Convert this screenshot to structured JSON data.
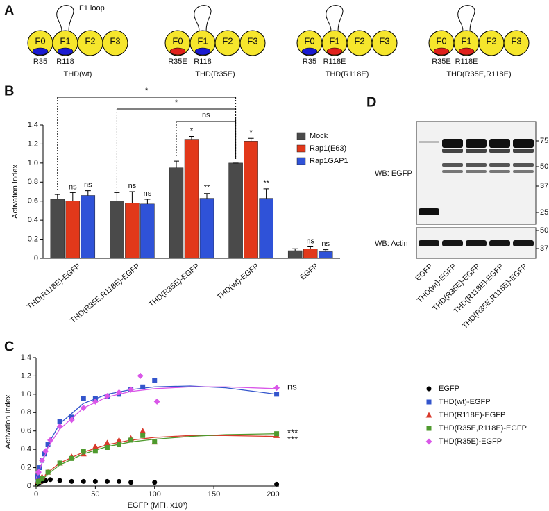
{
  "panels": {
    "a": "A",
    "b": "B",
    "c": "C",
    "d": "D"
  },
  "diagram": {
    "loop_label": "F1 loop",
    "domains": [
      "F0",
      "F1",
      "F2",
      "F3"
    ],
    "domain_color": "#f6e62c",
    "constructs": [
      {
        "name": "THD(wt)",
        "residues": [
          {
            "label": "R35",
            "color": "#1a1ad0"
          },
          {
            "label": "R118",
            "color": "#1a1ad0"
          }
        ]
      },
      {
        "name": "THD(R35E)",
        "residues": [
          {
            "label": "R35E",
            "color": "#e0201a"
          },
          {
            "label": "R118",
            "color": "#1a1ad0"
          }
        ]
      },
      {
        "name": "THD(R118E)",
        "residues": [
          {
            "label": "R35",
            "color": "#1a1ad0"
          },
          {
            "label": "R118E",
            "color": "#e0201a"
          }
        ]
      },
      {
        "name": "THD(R35E,R118E)",
        "residues": [
          {
            "label": "R35E",
            "color": "#e0201a"
          },
          {
            "label": "R118E",
            "color": "#e0201a"
          }
        ]
      }
    ]
  },
  "chart_data": [
    {
      "type": "bar",
      "y_label": "Activation Index",
      "categories": [
        "THD(R118E)-EGFP",
        "THD(R35E,R118E)-EGFP",
        "THD(R35E)-EGFP",
        "THD(wt)-EGFP",
        "EGFP"
      ],
      "series": [
        {
          "name": "Mock",
          "color": "#4a4a4a",
          "values": [
            0.62,
            0.6,
            0.95,
            1.0,
            0.08
          ],
          "errors": [
            0.05,
            0.09,
            0.07,
            0,
            0.02
          ],
          "annotations": [
            null,
            null,
            null,
            null,
            null
          ]
        },
        {
          "name": "Rap1(E63)",
          "color": "#e2381a",
          "values": [
            0.6,
            0.58,
            1.25,
            1.23,
            0.1
          ],
          "errors": [
            0.09,
            0.12,
            0.03,
            0.03,
            0.02
          ],
          "annotations": [
            "ns",
            "ns",
            "*",
            "*",
            "ns"
          ]
        },
        {
          "name": "Rap1GAP1",
          "color": "#2f52d8",
          "values": [
            0.66,
            0.57,
            0.63,
            0.63,
            0.07
          ],
          "errors": [
            0.05,
            0.05,
            0.05,
            0.1,
            0.02
          ],
          "annotations": [
            "ns",
            "ns",
            "**",
            "**",
            "ns"
          ]
        }
      ],
      "ylim": [
        0,
        1.4
      ],
      "yticks": [
        0,
        0.2,
        0.4,
        0.6,
        0.8,
        {
          "value": 1,
          "label": "1.0"
        },
        1.2,
        1.4
      ],
      "brackets": [
        {
          "label": "*"
        },
        {
          "label": "*"
        },
        {
          "label": "ns"
        }
      ],
      "legend": "upper right"
    },
    {
      "type": "scatter",
      "x_label": "EGFP (MFI, x10³)",
      "y_label": "Activation Index",
      "xlim": [
        0,
        205
      ],
      "xticks": [
        0,
        50,
        100,
        150,
        200
      ],
      "ylim": [
        0,
        1.4
      ],
      "yticks": [
        0,
        0.2,
        0.4,
        0.6,
        0.8,
        {
          "value": 1,
          "label": "1.0"
        },
        1.2,
        1.4
      ],
      "fit_x": [
        0,
        10,
        20,
        40,
        60,
        80,
        100,
        130,
        160,
        203
      ],
      "series": [
        {
          "name": "EGFP",
          "color": "#000000",
          "marker": "circle",
          "x": [
            1,
            3,
            5,
            8,
            12,
            20,
            30,
            40,
            50,
            60,
            70,
            80,
            100,
            203
          ],
          "values": [
            0.02,
            0.04,
            0.05,
            0.06,
            0.07,
            0.06,
            0.05,
            0.05,
            0.05,
            0.05,
            0.05,
            0.04,
            0.04,
            0.02
          ]
        },
        {
          "name": "THD(wt)-EGFP",
          "color": "#3355cc",
          "marker": "square",
          "x": [
            1,
            3,
            5,
            7,
            10,
            20,
            30,
            40,
            50,
            60,
            70,
            80,
            90,
            100,
            203
          ],
          "values": [
            0.1,
            0.2,
            0.28,
            0.35,
            0.45,
            0.7,
            0.75,
            0.95,
            0.95,
            0.98,
            1.0,
            1.05,
            1.08,
            1.15,
            1.0
          ],
          "fit": [
            0.05,
            0.45,
            0.68,
            0.9,
            1.0,
            1.05,
            1.08,
            1.09,
            1.07,
            1.0
          ]
        },
        {
          "name": "THD(R118E)-EGFP",
          "color": "#d8392b",
          "marker": "triangle",
          "x": [
            2,
            5,
            10,
            20,
            30,
            40,
            50,
            60,
            70,
            80,
            90,
            100,
            203
          ],
          "values": [
            0.05,
            0.1,
            0.15,
            0.25,
            0.32,
            0.35,
            0.43,
            0.47,
            0.5,
            0.52,
            0.6,
            0.48,
            0.55
          ],
          "fit": [
            0,
            0.15,
            0.25,
            0.37,
            0.45,
            0.5,
            0.53,
            0.55,
            0.55,
            0.54
          ]
        },
        {
          "name": "THD(R35E,R118E)-EGFP",
          "color": "#4f9a2e",
          "marker": "square",
          "x": [
            2,
            5,
            10,
            20,
            30,
            40,
            50,
            60,
            70,
            80,
            90,
            100,
            203
          ],
          "values": [
            0.05,
            0.08,
            0.15,
            0.25,
            0.3,
            0.38,
            0.38,
            0.42,
            0.45,
            0.5,
            0.55,
            0.48,
            0.57
          ],
          "fit": [
            0,
            0.13,
            0.23,
            0.35,
            0.43,
            0.48,
            0.51,
            0.54,
            0.56,
            0.57
          ]
        },
        {
          "name": "THD(R35E)-EGFP",
          "color": "#d957e8",
          "marker": "diamond",
          "x": [
            2,
            5,
            8,
            12,
            20,
            30,
            40,
            50,
            60,
            70,
            80,
            88,
            102,
            203
          ],
          "values": [
            0.15,
            0.28,
            0.38,
            0.5,
            0.65,
            0.72,
            0.85,
            0.92,
            0.98,
            1.02,
            1.05,
            1.2,
            0.92,
            1.07
          ],
          "fit": [
            0.08,
            0.42,
            0.62,
            0.85,
            0.97,
            1.03,
            1.06,
            1.08,
            1.08,
            1.06
          ]
        }
      ],
      "annotations": [
        {
          "label": "ns",
          "color": "#d957e8"
        },
        {
          "label": "***",
          "color": "#4f9a2e"
        },
        {
          "label": "***",
          "color": "#d8392b"
        }
      ],
      "legend": "right"
    }
  ],
  "blot": {
    "lanes": [
      "EGFP",
      "THD(wt)-EGFP",
      "THD(R35E)-EGFP",
      "THD(R118E)-EGFP",
      "THD(R35E,R118E)-EGFP"
    ],
    "panels": [
      {
        "label": "WB: EGFP",
        "markers": [
          75,
          50,
          37,
          25
        ]
      },
      {
        "label": "WB: Actin",
        "markers": [
          50,
          37
        ]
      }
    ]
  }
}
